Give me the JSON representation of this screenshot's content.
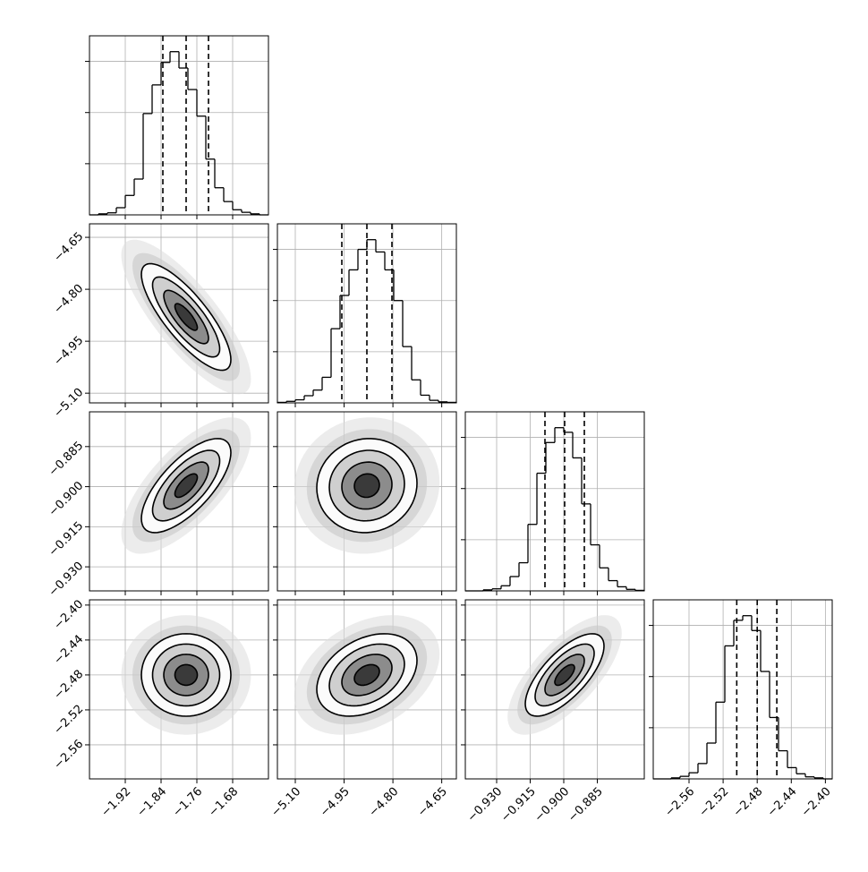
{
  "chart_data": [
    {
      "type": "histogram",
      "bins": [
        -2.0,
        -1.98,
        -1.96,
        -1.94,
        -1.92,
        -1.9,
        -1.88,
        -1.86,
        -1.84,
        -1.82,
        -1.8,
        -1.78,
        -1.76,
        -1.74,
        -1.72,
        -1.7,
        -1.68,
        -1.66,
        -1.64,
        -1.62,
        -1.6
      ],
      "values": [
        0,
        0.02,
        0.04,
        0.14,
        0.38,
        0.7,
        1.98,
        2.54,
        2.98,
        3.19,
        2.87,
        2.45,
        1.93,
        1.09,
        0.53,
        0.26,
        0.1,
        0.05,
        0.02,
        0
      ],
      "quantiles": [
        -1.836,
        -1.784,
        -1.734
      ],
      "xlim": [
        -2.0,
        -1.6
      ],
      "ylim": [
        0,
        3.5
      ],
      "xticks": [
        -1.92,
        -1.84,
        -1.76,
        -1.68
      ],
      "yticks": [
        1,
        2,
        3
      ]
    },
    {
      "type": "contour",
      "mean": [
        -1.784,
        -4.88
      ],
      "std": [
        0.05,
        0.077
      ],
      "corr": -0.8,
      "levels": [
        0.5,
        1,
        1.5,
        2
      ],
      "xlim": [
        -2.0,
        -1.6
      ],
      "ylim": [
        -5.128,
        -4.611
      ],
      "xticks": [
        -1.92,
        -1.84,
        -1.76,
        -1.68
      ],
      "yticks": [
        {
          "value": -5.1,
          "label": "−5.10"
        },
        {
          "value": -4.95,
          "label": "−4.95"
        },
        {
          "value": -4.8,
          "label": "−4.80"
        },
        {
          "value": -4.65,
          "label": "−4.65"
        }
      ]
    },
    {
      "type": "histogram",
      "bins": [
        -5.155,
        -5.1275,
        -5.1,
        -5.0725,
        -5.045,
        -5.0175,
        -4.99,
        -4.9625,
        -4.935,
        -4.9075,
        -4.88,
        -4.8525,
        -4.825,
        -4.7975,
        -4.77,
        -4.7425,
        -4.715,
        -4.6875,
        -4.66,
        -4.6325,
        -4.605
      ],
      "values": [
        0.01,
        0.03,
        0.06,
        0.14,
        0.25,
        0.5,
        1.45,
        2.1,
        2.6,
        3.0,
        3.19,
        2.95,
        2.6,
        2.0,
        1.1,
        0.45,
        0.15,
        0.05,
        0.02,
        0.01
      ],
      "quantiles": [
        -4.957,
        -4.88,
        -4.803
      ],
      "xlim": [
        -5.155,
        -4.605
      ],
      "ylim": [
        0,
        3.5
      ],
      "xticks": [
        -5.1,
        -4.95,
        -4.8,
        -4.65
      ],
      "yticks": [
        1,
        2,
        3
      ]
    },
    {
      "type": "contour",
      "mean": [
        -1.784,
        -0.8996
      ],
      "std": [
        0.05,
        0.0088
      ],
      "corr": 0.7,
      "levels": [
        0.5,
        1,
        1.5,
        2
      ],
      "xlim": [
        -2.0,
        -1.6
      ],
      "ylim": [
        -0.939,
        -0.872
      ],
      "xticks": [
        -1.92,
        -1.84,
        -1.76,
        -1.68
      ],
      "yticks": [
        {
          "value": -0.93,
          "label": "−0.930"
        },
        {
          "value": -0.915,
          "label": "−0.915"
        },
        {
          "value": -0.9,
          "label": "−0.900"
        },
        {
          "value": -0.885,
          "label": "−0.885"
        }
      ]
    },
    {
      "type": "contour",
      "mean": [
        -4.88,
        -0.8996
      ],
      "std": [
        0.077,
        0.0088
      ],
      "corr": 0.05,
      "levels": [
        0.5,
        1,
        1.5,
        2
      ],
      "xlim": [
        -5.155,
        -4.605
      ],
      "ylim": [
        -0.939,
        -0.872
      ],
      "xticks": [
        -5.1,
        -4.95,
        -4.8,
        -4.65
      ],
      "yticks": [
        -0.93,
        -0.915,
        -0.9,
        -0.885
      ]
    },
    {
      "type": "histogram",
      "bins": [
        -0.944,
        -0.94,
        -0.936,
        -0.932,
        -0.928,
        -0.924,
        -0.92,
        -0.916,
        -0.912,
        -0.908,
        -0.904,
        -0.9,
        -0.896,
        -0.892,
        -0.888,
        -0.884,
        -0.88,
        -0.876,
        -0.872,
        -0.868,
        -0.864
      ],
      "values": [
        0,
        0,
        0.02,
        0.04,
        0.1,
        0.28,
        0.55,
        1.3,
        2.3,
        2.9,
        3.19,
        3.1,
        2.6,
        1.7,
        0.9,
        0.45,
        0.2,
        0.08,
        0.03,
        0.01
      ],
      "quantiles": [
        -0.9084,
        -0.8996,
        -0.8908
      ],
      "xlim": [
        -0.944,
        -0.864
      ],
      "ylim": [
        0,
        3.5
      ],
      "xticks": [
        -0.93,
        -0.915,
        -0.9,
        -0.885
      ],
      "yticks": [
        1,
        2,
        3
      ]
    },
    {
      "type": "contour",
      "mean": [
        -1.784,
        -2.48
      ],
      "std": [
        0.05,
        0.0236
      ],
      "corr": 0.0,
      "levels": [
        0.5,
        1,
        1.5,
        2
      ],
      "xlim": [
        -2.0,
        -1.6
      ],
      "ylim": [
        -2.599,
        -2.394
      ],
      "xticks": [
        {
          "value": -1.92,
          "label": "−1.92"
        },
        {
          "value": -1.84,
          "label": "−1.84"
        },
        {
          "value": -1.76,
          "label": "−1.76"
        },
        {
          "value": -1.68,
          "label": "−1.68"
        }
      ],
      "yticks": [
        {
          "value": -2.56,
          "label": "−2.56"
        },
        {
          "value": -2.52,
          "label": "−2.52"
        },
        {
          "value": -2.48,
          "label": "−2.48"
        },
        {
          "value": -2.44,
          "label": "−2.44"
        },
        {
          "value": -2.4,
          "label": "−2.40"
        }
      ]
    },
    {
      "type": "contour",
      "mean": [
        -4.88,
        -2.48
      ],
      "std": [
        0.077,
        0.0236
      ],
      "corr": 0.35,
      "levels": [
        0.5,
        1,
        1.5,
        2
      ],
      "xlim": [
        -5.155,
        -4.605
      ],
      "ylim": [
        -2.599,
        -2.394
      ],
      "xticks": [
        {
          "value": -5.1,
          "label": "−5.10"
        },
        {
          "value": -4.95,
          "label": "−4.95"
        },
        {
          "value": -4.8,
          "label": "−4.80"
        },
        {
          "value": -4.65,
          "label": "−4.65"
        }
      ],
      "yticks": [
        -2.56,
        -2.52,
        -2.48,
        -2.44,
        -2.4
      ]
    },
    {
      "type": "contour",
      "mean": [
        -0.8996,
        -2.48
      ],
      "std": [
        0.0088,
        0.0236
      ],
      "corr": 0.7,
      "levels": [
        0.5,
        1,
        1.5,
        2
      ],
      "xlim": [
        -0.944,
        -0.864
      ],
      "ylim": [
        -2.599,
        -2.394
      ],
      "xticks": [
        {
          "value": -0.93,
          "label": "−0.930"
        },
        {
          "value": -0.915,
          "label": "−0.915"
        },
        {
          "value": -0.9,
          "label": "−0.900"
        },
        {
          "value": -0.885,
          "label": "−0.885"
        }
      ],
      "yticks": [
        -2.56,
        -2.52,
        -2.48,
        -2.44,
        -2.4
      ]
    },
    {
      "type": "histogram",
      "bins": [
        -2.602,
        -2.5915,
        -2.581,
        -2.5705,
        -2.56,
        -2.5495,
        -2.539,
        -2.5285,
        -2.518,
        -2.5075,
        -2.497,
        -2.4865,
        -2.476,
        -2.4655,
        -2.455,
        -2.4445,
        -2.434,
        -2.4235,
        -2.413,
        -2.4025,
        -2.392
      ],
      "values": [
        0,
        0,
        0.02,
        0.05,
        0.12,
        0.3,
        0.7,
        1.5,
        2.6,
        3.1,
        3.19,
        2.9,
        2.1,
        1.2,
        0.55,
        0.22,
        0.1,
        0.04,
        0.02,
        0
      ],
      "quantiles": [
        -2.504,
        -2.48,
        -2.457
      ],
      "xlim": [
        -2.602,
        -2.392
      ],
      "ylim": [
        0,
        3.5
      ],
      "xticks": [
        {
          "value": -2.56,
          "label": "−2.56"
        },
        {
          "value": -2.52,
          "label": "−2.52"
        },
        {
          "value": -2.48,
          "label": "−2.48"
        },
        {
          "value": -2.44,
          "label": "−2.44"
        },
        {
          "value": -2.4,
          "label": "−2.40"
        }
      ],
      "yticks": [
        1,
        2,
        3
      ]
    }
  ]
}
